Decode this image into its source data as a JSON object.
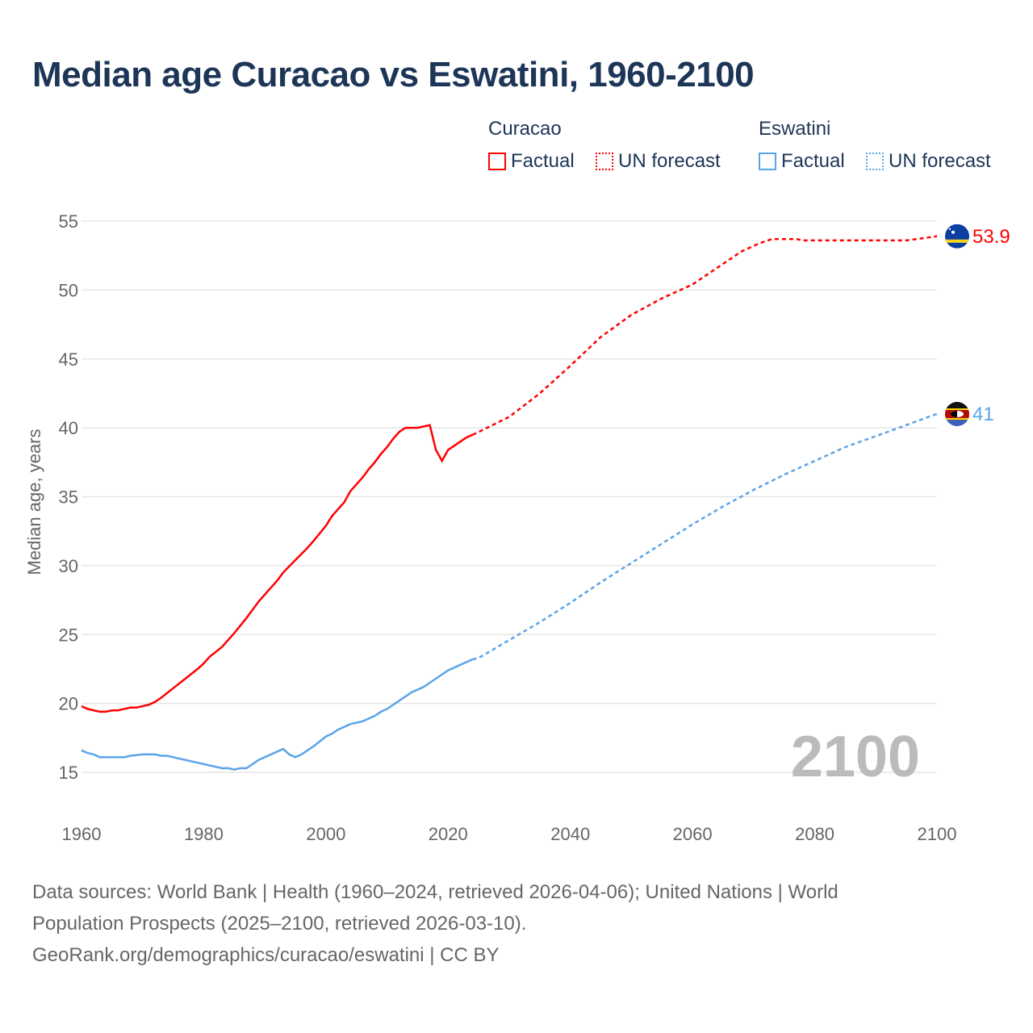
{
  "title": "Median age Curacao vs Eswatini, 1960-2100",
  "legend": {
    "groups": [
      {
        "name": "Curacao",
        "factual": "Factual",
        "forecast": "UN forecast",
        "color": "#ff0000"
      },
      {
        "name": "Eswatini",
        "factual": "Factual",
        "forecast": "UN forecast",
        "color": "#5ba4e8"
      }
    ]
  },
  "year_watermark": "2100",
  "footer": {
    "line1": "Data sources: World Bank | Health (1960–2024, retrieved 2026-04-06); United Nations | World",
    "line2": "Population Prospects (2025–2100, retrieved 2026-03-10).",
    "line3": "GeoRank.org/demographics/curacao/eswatini | CC BY"
  },
  "chart_data": {
    "type": "line",
    "title": "Median age Curacao vs Eswatini, 1960-2100",
    "xlabel": "",
    "ylabel": "Median age, years",
    "xlim": [
      1960,
      2100
    ],
    "ylim": [
      15,
      55
    ],
    "xticks": [
      "1960",
      "1980",
      "2000",
      "2020",
      "2040",
      "2060",
      "2080",
      "2100"
    ],
    "yticks": [
      "15",
      "20",
      "25",
      "30",
      "35",
      "40",
      "45",
      "50",
      "55"
    ],
    "grid": true,
    "legend_position": "top-right",
    "series": [
      {
        "name": "Curacao",
        "color": "#ff0000",
        "end_label": "53.9",
        "flag": "curacao-flag",
        "factual": [
          [
            1960,
            19.8
          ],
          [
            1961,
            19.6
          ],
          [
            1963,
            19.4
          ],
          [
            1964,
            19.4
          ],
          [
            1965,
            19.5
          ],
          [
            1966,
            19.5
          ],
          [
            1968,
            19.7
          ],
          [
            1969,
            19.7
          ],
          [
            1971,
            19.9
          ],
          [
            1972,
            20.1
          ],
          [
            1973,
            20.4
          ],
          [
            1975,
            21.1
          ],
          [
            1977,
            21.8
          ],
          [
            1979,
            22.5
          ],
          [
            1980,
            22.9
          ],
          [
            1981,
            23.4
          ],
          [
            1983,
            24.1
          ],
          [
            1985,
            25.1
          ],
          [
            1987,
            26.2
          ],
          [
            1988,
            26.8
          ],
          [
            1989,
            27.4
          ],
          [
            1990,
            27.9
          ],
          [
            1992,
            28.9
          ],
          [
            1993,
            29.5
          ],
          [
            1995,
            30.4
          ],
          [
            1997,
            31.3
          ],
          [
            1998,
            31.8
          ],
          [
            2000,
            32.9
          ],
          [
            2001,
            33.6
          ],
          [
            2003,
            34.6
          ],
          [
            2004,
            35.4
          ],
          [
            2006,
            36.4
          ],
          [
            2007,
            37.0
          ],
          [
            2008,
            37.5
          ],
          [
            2009,
            38.1
          ],
          [
            2010,
            38.6
          ],
          [
            2011,
            39.2
          ],
          [
            2012,
            39.7
          ],
          [
            2013,
            40.0
          ],
          [
            2015,
            40.0
          ],
          [
            2017,
            40.2
          ],
          [
            2018,
            38.4
          ],
          [
            2019,
            37.6
          ],
          [
            2020,
            38.4
          ],
          [
            2021,
            38.7
          ],
          [
            2022,
            39.0
          ],
          [
            2023,
            39.3
          ],
          [
            2024,
            39.5
          ]
        ],
        "forecast": [
          [
            2024,
            39.5
          ],
          [
            2025,
            39.7
          ],
          [
            2030,
            40.8
          ],
          [
            2035,
            42.5
          ],
          [
            2040,
            44.5
          ],
          [
            2045,
            46.6
          ],
          [
            2050,
            48.2
          ],
          [
            2055,
            49.4
          ],
          [
            2060,
            50.4
          ],
          [
            2065,
            51.9
          ],
          [
            2068,
            52.8
          ],
          [
            2071,
            53.4
          ],
          [
            2073,
            53.7
          ],
          [
            2077,
            53.7
          ],
          [
            2078,
            53.6
          ],
          [
            2095,
            53.6
          ],
          [
            2100,
            53.9
          ]
        ]
      },
      {
        "name": "Eswatini",
        "color": "#5ba4e8",
        "end_label": "41",
        "flag": "eswatini-flag",
        "factual": [
          [
            1960,
            16.6
          ],
          [
            1961,
            16.4
          ],
          [
            1962,
            16.3
          ],
          [
            1963,
            16.1
          ],
          [
            1967,
            16.1
          ],
          [
            1968,
            16.2
          ],
          [
            1970,
            16.3
          ],
          [
            1972,
            16.3
          ],
          [
            1973,
            16.2
          ],
          [
            1974,
            16.2
          ],
          [
            1980,
            15.6
          ],
          [
            1983,
            15.3
          ],
          [
            1984,
            15.3
          ],
          [
            1985,
            15.2
          ],
          [
            1986,
            15.3
          ],
          [
            1987,
            15.3
          ],
          [
            1989,
            15.9
          ],
          [
            1991,
            16.3
          ],
          [
            1993,
            16.7
          ],
          [
            1994,
            16.3
          ],
          [
            1995,
            16.1
          ],
          [
            1996,
            16.3
          ],
          [
            1998,
            16.9
          ],
          [
            2000,
            17.6
          ],
          [
            2001,
            17.8
          ],
          [
            2002,
            18.1
          ],
          [
            2004,
            18.5
          ],
          [
            2006,
            18.7
          ],
          [
            2008,
            19.1
          ],
          [
            2009,
            19.4
          ],
          [
            2010,
            19.6
          ],
          [
            2012,
            20.2
          ],
          [
            2013,
            20.5
          ],
          [
            2014,
            20.8
          ],
          [
            2015,
            21.0
          ],
          [
            2016,
            21.2
          ],
          [
            2018,
            21.8
          ],
          [
            2020,
            22.4
          ],
          [
            2022,
            22.8
          ],
          [
            2024,
            23.2
          ]
        ],
        "forecast": [
          [
            2024,
            23.2
          ],
          [
            2025,
            23.3
          ],
          [
            2030,
            24.6
          ],
          [
            2035,
            25.9
          ],
          [
            2040,
            27.3
          ],
          [
            2045,
            28.8
          ],
          [
            2050,
            30.2
          ],
          [
            2055,
            31.6
          ],
          [
            2060,
            33.0
          ],
          [
            2065,
            34.3
          ],
          [
            2070,
            35.5
          ],
          [
            2075,
            36.6
          ],
          [
            2080,
            37.6
          ],
          [
            2085,
            38.6
          ],
          [
            2090,
            39.4
          ],
          [
            2095,
            40.2
          ],
          [
            2098,
            40.7
          ],
          [
            2100,
            41.0
          ]
        ]
      }
    ]
  }
}
